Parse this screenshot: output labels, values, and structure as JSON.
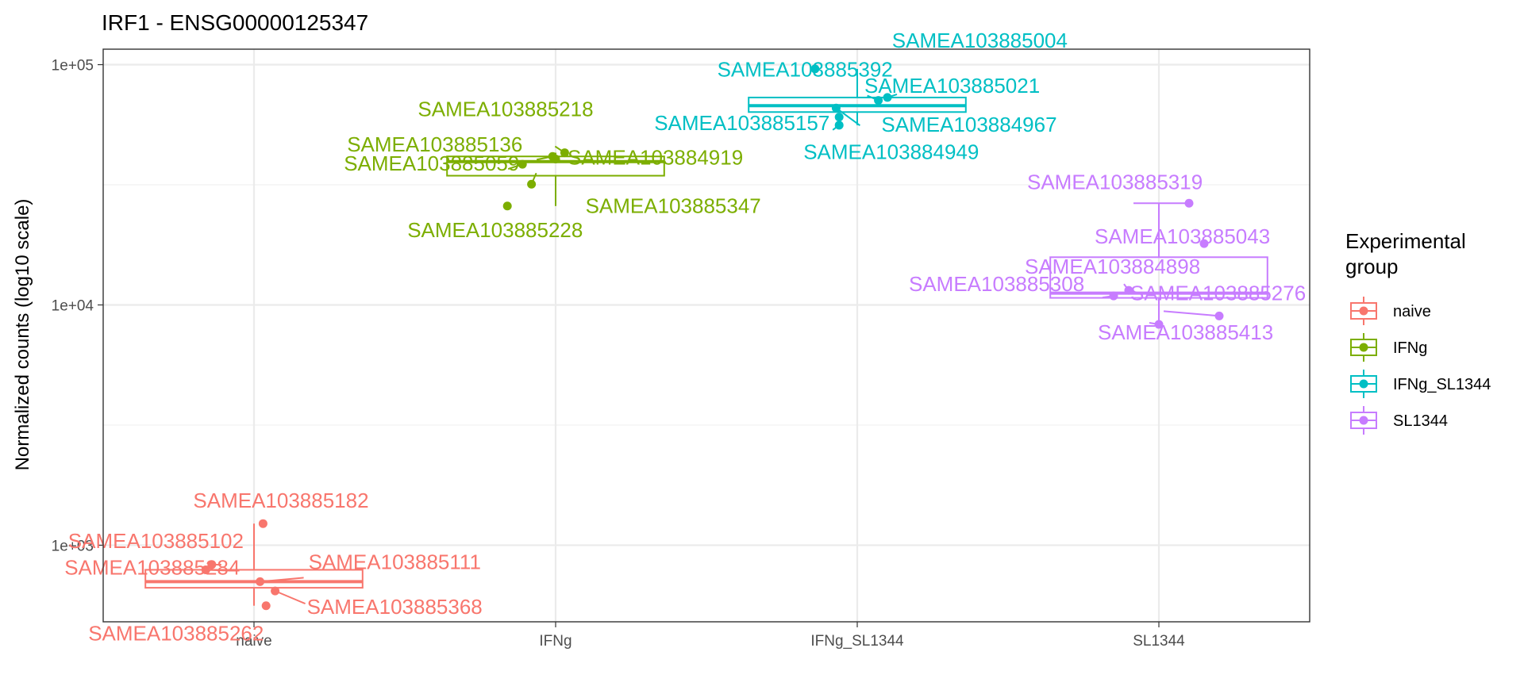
{
  "chart_data": {
    "type": "boxplot",
    "title": "IRF1 - ENSG00000125347",
    "xlabel": "",
    "ylabel": "Normalized counts (log10 scale)",
    "y_scale": "log10",
    "ylim": [
      480,
      116000
    ],
    "y_ticks": [
      1000,
      10000,
      100000
    ],
    "y_tick_labels": [
      "1e+03",
      "1e+04",
      "1e+05"
    ],
    "grid": true,
    "categories": [
      "naive",
      "IFNg",
      "IFNg_SL1344",
      "SL1344"
    ],
    "legend": {
      "title": "Experimental group",
      "title_lines": [
        "Experimental",
        "group"
      ],
      "position": "right",
      "entries": [
        "naive",
        "IFNg",
        "IFNg_SL1344",
        "SL1344"
      ]
    },
    "colors": {
      "naive": "#F8766D",
      "IFNg": "#7CAE00",
      "IFNg_SL1344": "#00BFC4",
      "SL1344": "#C77CFF"
    },
    "boxes": [
      {
        "group": "naive",
        "min": 560,
        "q1": 665,
        "median": 705,
        "q3": 790,
        "max": 1230
      },
      {
        "group": "IFNg",
        "min": 25800,
        "q1": 34500,
        "median": 39500,
        "q3": 41500,
        "max": 43000
      },
      {
        "group": "IFNg_SL1344",
        "min": 56000,
        "q1": 63500,
        "median": 67500,
        "q3": 73000,
        "max": 96000
      },
      {
        "group": "SL1344",
        "min": 8300,
        "q1": 10700,
        "median": 11200,
        "q3": 15800,
        "max": 26500
      }
    ],
    "points": [
      {
        "group": "naive",
        "sample": "SAMEA103885182",
        "value": 1230,
        "jitter": 0.03
      },
      {
        "group": "naive",
        "sample": "SAMEA103885102",
        "value": 830,
        "jitter": -0.14
      },
      {
        "group": "naive",
        "sample": "SAMEA103885284",
        "value": 790,
        "jitter": -0.16
      },
      {
        "group": "naive",
        "sample": "SAMEA103885111",
        "value": 705,
        "jitter": 0.02
      },
      {
        "group": "naive",
        "sample": "SAMEA103885368",
        "value": 645,
        "jitter": 0.07
      },
      {
        "group": "naive",
        "sample": "SAMEA103885262",
        "value": 560,
        "jitter": 0.04
      },
      {
        "group": "IFNg",
        "sample": "SAMEA103885218",
        "value": 43000,
        "jitter": 0.03
      },
      {
        "group": "IFNg",
        "sample": "SAMEA103885136",
        "value": 41500,
        "jitter": -0.01
      },
      {
        "group": "IFNg",
        "sample": "SAMEA103884919",
        "value": 40500,
        "jitter": 0.0
      },
      {
        "group": "IFNg",
        "sample": "SAMEA103885059",
        "value": 38500,
        "jitter": -0.11
      },
      {
        "group": "IFNg",
        "sample": "SAMEA103885347",
        "value": 31800,
        "jitter": -0.08
      },
      {
        "group": "IFNg",
        "sample": "SAMEA103885228",
        "value": 25800,
        "jitter": -0.16
      },
      {
        "group": "IFNg_SL1344",
        "sample": "SAMEA103885004",
        "value": 96000,
        "jitter": -0.14
      },
      {
        "group": "IFNg_SL1344",
        "sample": "SAMEA103885021",
        "value": 73000,
        "jitter": 0.1
      },
      {
        "group": "IFNg_SL1344",
        "sample": "SAMEA103885392",
        "value": 71000,
        "jitter": 0.07
      },
      {
        "group": "IFNg_SL1344",
        "sample": "SAMEA103884967",
        "value": 66000,
        "jitter": -0.07
      },
      {
        "group": "IFNg_SL1344",
        "sample": "SAMEA103884949",
        "value": 60500,
        "jitter": -0.06
      },
      {
        "group": "IFNg_SL1344",
        "sample": "SAMEA103885157",
        "value": 56000,
        "jitter": -0.06
      },
      {
        "group": "SL1344",
        "sample": "SAMEA103885319",
        "value": 26500,
        "jitter": 0.1
      },
      {
        "group": "SL1344",
        "sample": "SAMEA103885043",
        "value": 18000,
        "jitter": 0.15
      },
      {
        "group": "SL1344",
        "sample": "SAMEA103884898",
        "value": 11500,
        "jitter": -0.1
      },
      {
        "group": "SL1344",
        "sample": "SAMEA103885308",
        "value": 10900,
        "jitter": -0.15
      },
      {
        "group": "SL1344",
        "sample": "SAMEA103885276",
        "value": 9000,
        "jitter": 0.2
      },
      {
        "group": "SL1344",
        "sample": "SAMEA103885413",
        "value": 8300,
        "jitter": 0.0
      }
    ],
    "labels": [
      {
        "sample": "SAMEA103885182"
      },
      {
        "sample": "SAMEA103885102"
      },
      {
        "sample": "SAMEA103885284"
      },
      {
        "sample": "SAMEA103885111"
      },
      {
        "sample": "SAMEA103885368"
      },
      {
        "sample": "SAMEA103885262"
      },
      {
        "sample": "SAMEA103885218"
      },
      {
        "sample": "SAMEA103885136"
      },
      {
        "sample": "SAMEA103884919"
      },
      {
        "sample": "SAMEA103885059"
      },
      {
        "sample": "SAMEA103885347"
      },
      {
        "sample": "SAMEA103885228"
      },
      {
        "sample": "SAMEA103885004"
      },
      {
        "sample": "SAMEA103885392"
      },
      {
        "sample": "SAMEA103885021"
      },
      {
        "sample": "SAMEA103885157"
      },
      {
        "sample": "SAMEA103884967"
      },
      {
        "sample": "SAMEA103884949"
      },
      {
        "sample": "SAMEA103885319"
      },
      {
        "sample": "SAMEA103885043"
      },
      {
        "sample": "SAMEA103884898"
      },
      {
        "sample": "SAMEA103885308"
      },
      {
        "sample": "SAMEA103885276"
      },
      {
        "sample": "SAMEA103885413"
      }
    ]
  }
}
